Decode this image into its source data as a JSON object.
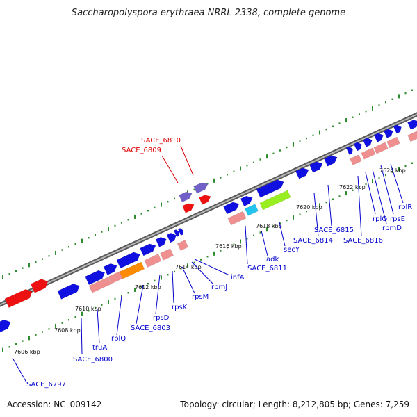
{
  "title": "Saccharopolyspora erythraea NRRL 2338, complete genome",
  "footer": {
    "accession": "Accession: NC_009142",
    "summary": "Topology: circular; Length: 8,212,805 bp; Genes: 7,259"
  },
  "colors": {
    "backbone": "#8a8a8a",
    "tick_dot": "#2e8b2e",
    "forward_gene": "#1010e0",
    "reverse_gene": "#ef8f8f",
    "label_blue": "#0000cc",
    "label_red": "#dd0000",
    "highlight_red": "#ee1111",
    "highlight_purple": "#7060c8",
    "orange_gene": "#ff8c00",
    "cyan_gene": "#22c4ee",
    "lime_gene": "#99ee22"
  },
  "ticks": [
    "7606 kbp",
    "7608 kbp",
    "7610 kbp",
    "7612 kbp",
    "7614 kbp",
    "7616 kbp",
    "7618 kbp",
    "7620 kbp",
    "7622 kbp",
    "7624 kbp"
  ],
  "labels": [
    "SACE_6797",
    "SACE_6800",
    "truA",
    "rplQ",
    "SACE_6803",
    "rpsD",
    "rpsK",
    "rpsM",
    "rpmJ",
    "infA",
    "SACE_6811",
    "adk",
    "secY",
    "SACE_6814",
    "SACE_6815",
    "SACE_6816",
    "rplO",
    "rpmD",
    "rpsE",
    "rplR",
    "SACE_6809",
    "SACE_6810"
  ]
}
